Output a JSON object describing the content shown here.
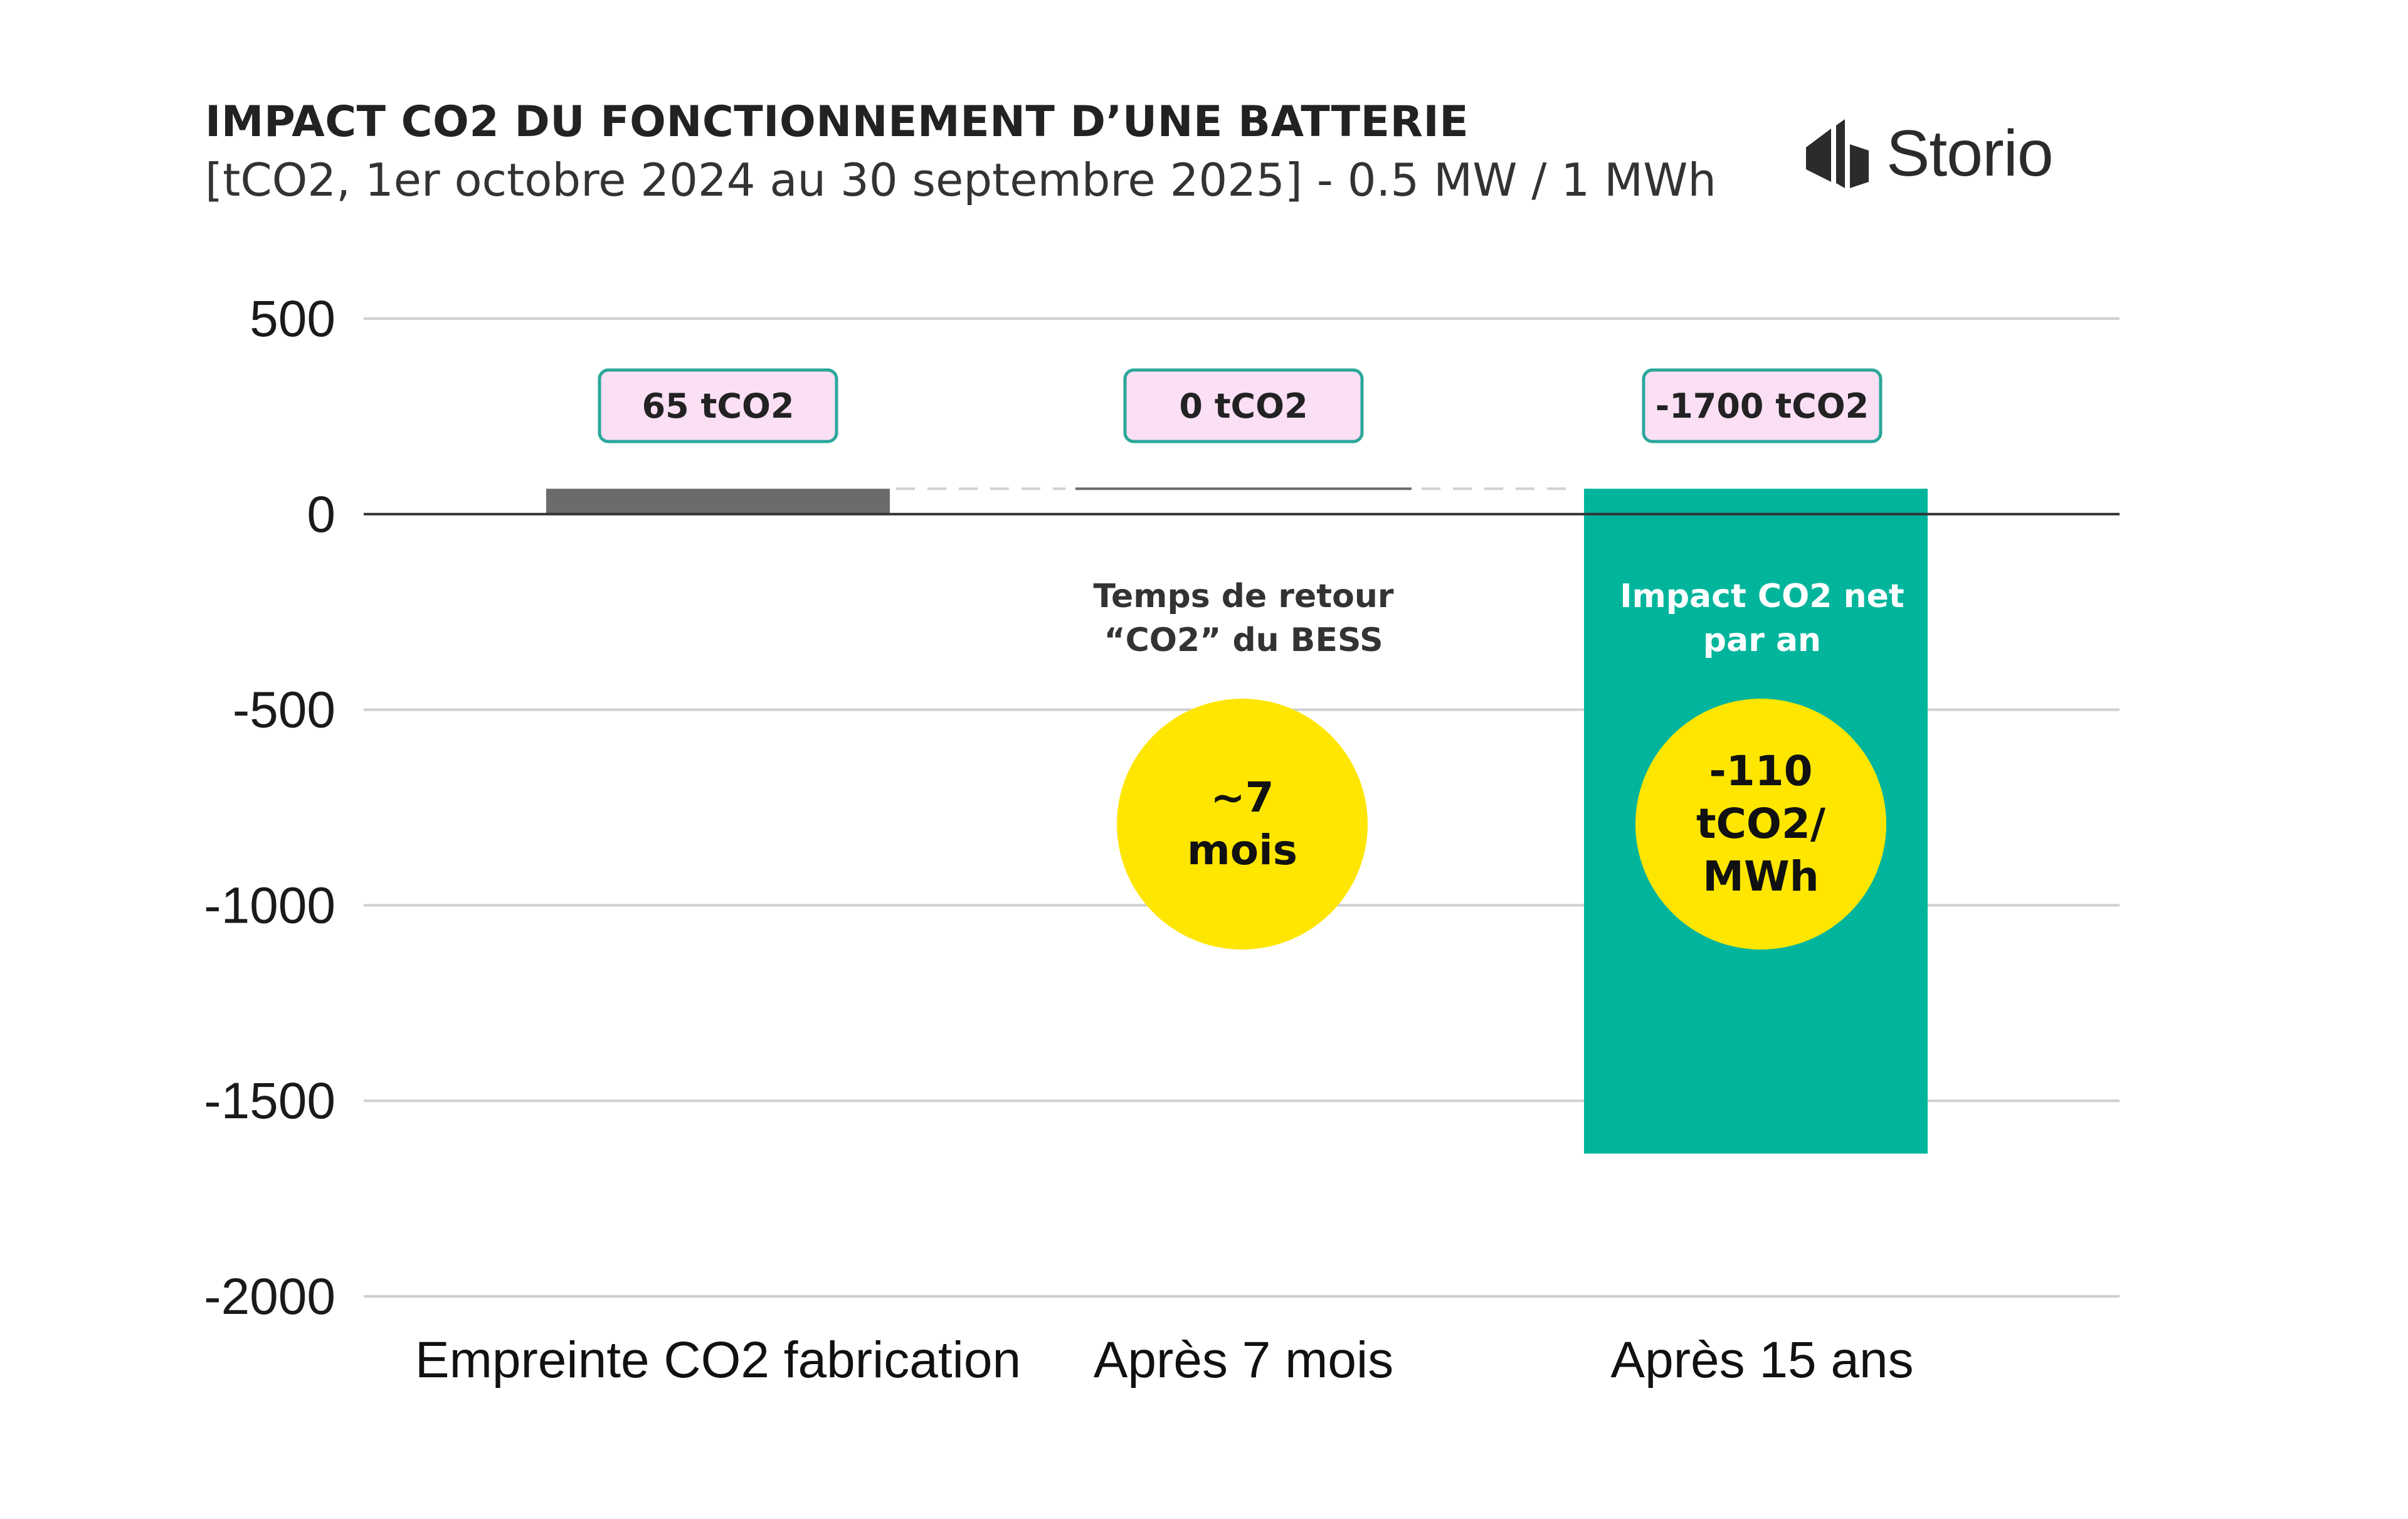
{
  "header": {
    "title": "IMPACT CO2 DU FONCTIONNEMENT D’UNE BATTERIE",
    "subtitle": "[tCO2, 1er octobre 2024 au 30 septembre 2025] - 0.5 MW / 1 MWh"
  },
  "logo": {
    "text": "Storio",
    "icon": "storio-logo-icon",
    "color": "#2b2b2b"
  },
  "chart_data": {
    "type": "bar",
    "categories": [
      "Empreinte CO2 fabrication",
      "Après 7 mois",
      "Après 15 ans"
    ],
    "values": [
      65,
      0,
      -1700
    ],
    "data_labels": [
      "65 tCO2",
      "0 tCO2",
      "-1700 tCO2"
    ],
    "ylim": [
      -2000,
      500
    ],
    "yticks": [
      500,
      0,
      -500,
      -1000,
      -1500,
      -2000
    ],
    "ytick_labels": [
      "500",
      "0",
      "-500",
      "-1000",
      "-1500",
      "-2000"
    ],
    "grid": true,
    "bar_colors": [
      "#6b6b6b",
      "#6b6b6b",
      "#00b59c"
    ],
    "label_box": {
      "fill": "#fbdff5",
      "stroke": "#2aa79a"
    },
    "annotations": [
      {
        "category": "Après 7 mois",
        "lines": [
          "Temps de retour",
          "“CO2” du BESS"
        ],
        "color": "#333333"
      },
      {
        "category": "Après 15 ans",
        "lines": [
          "Impact CO2 net",
          "par an"
        ],
        "color": "#ffffff"
      }
    ],
    "callouts": [
      {
        "category": "Après 7 mois",
        "lines": [
          "~7",
          "mois"
        ],
        "color": "#ffe600"
      },
      {
        "category": "Après 15 ans",
        "lines": [
          "-110",
          "tCO2/",
          "MWh"
        ],
        "color": "#ffe600"
      }
    ]
  }
}
